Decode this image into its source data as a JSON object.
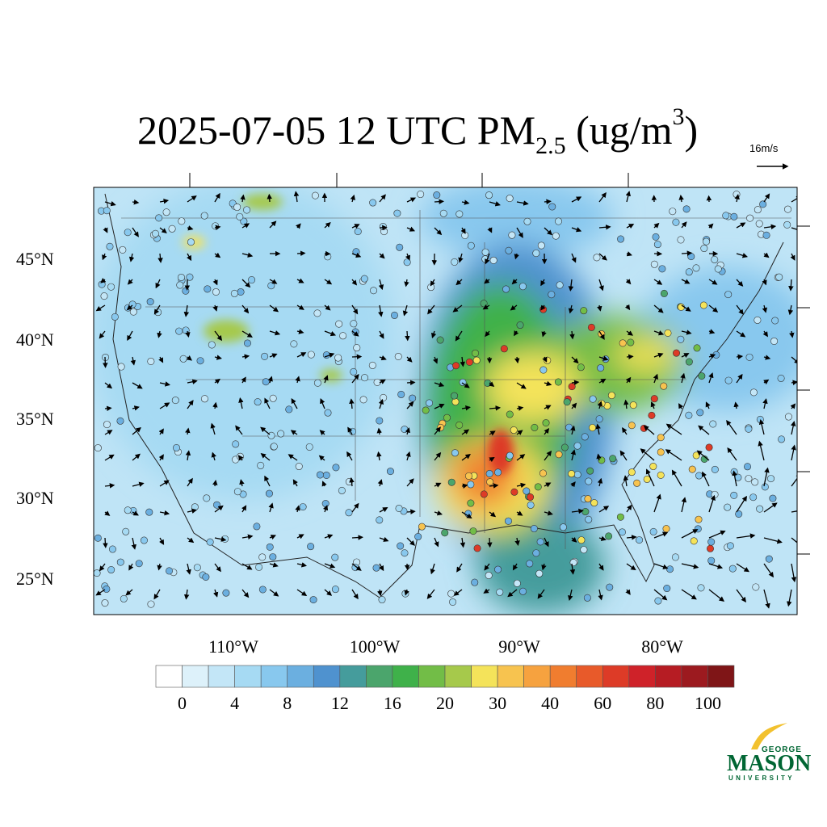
{
  "title": {
    "main": "2025-07-05 12 UTC PM",
    "subscript": "2.5",
    "unit_open": " (ug/m",
    "superscript": "3",
    "unit_close": ")"
  },
  "reference_vector": {
    "label": "16m/s"
  },
  "map": {
    "latitude_labels": [
      "45°N",
      "40°N",
      "35°N",
      "30°N",
      "25°N"
    ],
    "longitude_labels": [
      "110°W",
      "100°W",
      "90°W",
      "80°W"
    ]
  },
  "colorbar": {
    "colors": [
      "#ffffff",
      "#ddf1fa",
      "#c3e6f7",
      "#a6daf3",
      "#88c8ee",
      "#6bafe0",
      "#4f92cf",
      "#459c9c",
      "#4ba56c",
      "#3fb14a",
      "#72bd47",
      "#a6c94b",
      "#f4e35a",
      "#f7c34f",
      "#f6a23f",
      "#f07d2f",
      "#e85a2a",
      "#dd3b27",
      "#cf2229",
      "#b61c23",
      "#9c1a1f",
      "#7f1517"
    ],
    "labels": [
      0,
      4,
      8,
      12,
      16,
      20,
      30,
      40,
      60,
      80,
      100
    ]
  },
  "logo": {
    "top": "GEORGE",
    "main": "MASON",
    "bottom": "UNIVERSITY"
  }
}
